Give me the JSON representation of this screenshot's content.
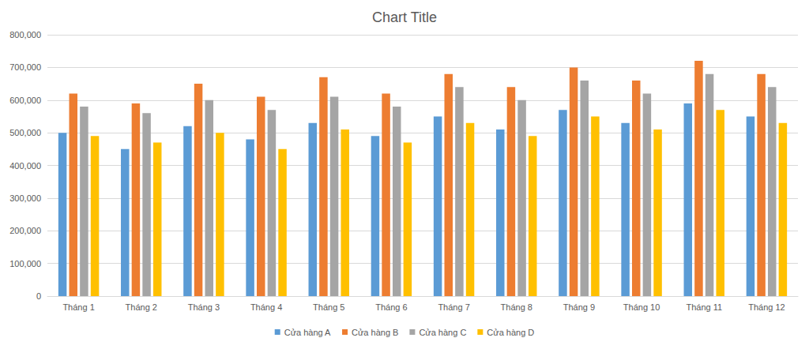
{
  "chart_data": {
    "type": "bar",
    "title": "Chart Title",
    "categories": [
      "Tháng 1",
      "Tháng 2",
      "Tháng 3",
      "Tháng 4",
      "Tháng 5",
      "Tháng 6",
      "Tháng 7",
      "Tháng 8",
      "Tháng 9",
      "Tháng 10",
      "Tháng 11",
      "Tháng 12"
    ],
    "series": [
      {
        "name": "Cửa hàng A",
        "color": "#5b9bd5",
        "values": [
          500000,
          450000,
          520000,
          480000,
          530000,
          490000,
          550000,
          510000,
          570000,
          530000,
          590000,
          550000
        ]
      },
      {
        "name": "Cửa hàng B",
        "color": "#ed7d31",
        "values": [
          620000,
          590000,
          650000,
          610000,
          670000,
          620000,
          680000,
          640000,
          700000,
          660000,
          720000,
          680000
        ]
      },
      {
        "name": "Cửa hàng C",
        "color": "#a5a5a5",
        "values": [
          580000,
          560000,
          600000,
          570000,
          610000,
          580000,
          640000,
          600000,
          660000,
          620000,
          680000,
          640000
        ]
      },
      {
        "name": "Cửa hàng D",
        "color": "#ffc000",
        "values": [
          490000,
          470000,
          500000,
          450000,
          510000,
          470000,
          530000,
          490000,
          550000,
          510000,
          570000,
          530000
        ]
      }
    ],
    "ylim": [
      0,
      800000
    ],
    "yticks": [
      0,
      {
        "value": 100000,
        "label": "100,000"
      },
      {
        "value": 200000,
        "label": "200,000"
      },
      {
        "value": 300000,
        "label": "300,000"
      },
      {
        "value": 400000,
        "label": "400,000"
      },
      {
        "value": 500000,
        "label": "500,000"
      },
      {
        "value": 600000,
        "label": "600,000"
      },
      {
        "value": 700000,
        "label": "700,000"
      },
      {
        "value": 800000,
        "label": "800,000"
      }
    ],
    "grid": true,
    "legend": "bottom"
  }
}
